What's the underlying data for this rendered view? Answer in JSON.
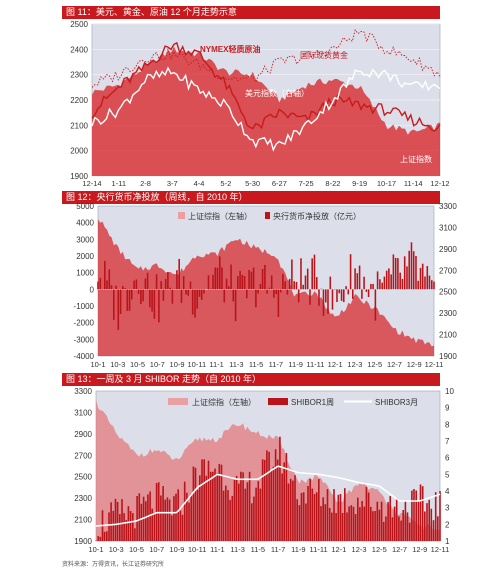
{
  "chart_data": [
    {
      "type": "line",
      "title": "图 11：美元、黄金、原油 12 个月走势示意",
      "categories": [
        "12-14",
        "1-11",
        "2-8",
        "3-7",
        "4-4",
        "5-2",
        "5-30",
        "6-27",
        "7-25",
        "8-22",
        "9-19",
        "10-17",
        "11-14",
        "12-12"
      ],
      "ylim": [
        1900,
        2500
      ],
      "yticks": [
        1900,
        2000,
        2100,
        2200,
        2300,
        2400,
        2500
      ],
      "grid": true,
      "series": [
        {
          "name": "上证指数",
          "kind": "area",
          "color": "#c81a1e",
          "values": [
            2230,
            2260,
            2330,
            2400,
            2380,
            2310,
            2300,
            2200,
            2260,
            2280,
            2250,
            2100,
            2070,
            2100
          ]
        },
        {
          "name": "NYMEX轻质原油",
          "kind": "line",
          "color": "#c81a1e",
          "values": [
            2150,
            2250,
            2330,
            2420,
            2380,
            2260,
            2080,
            2150,
            2120,
            2200,
            2180,
            2160,
            2120,
            2090
          ]
        },
        {
          "name": "国际现货黄金",
          "kind": "dotted",
          "color": "#c81a1e",
          "values": [
            2260,
            2300,
            2370,
            2380,
            2340,
            2290,
            2280,
            2350,
            2370,
            2400,
            2470,
            2400,
            2360,
            2300
          ]
        },
        {
          "name": "美元指数（右轴）",
          "kind": "line",
          "color": "#ffffff",
          "values": [
            2110,
            2160,
            2280,
            2310,
            2240,
            2180,
            2040,
            2020,
            2100,
            2200,
            2320,
            2300,
            2250,
            2260
          ]
        }
      ]
    },
    {
      "type": "bar",
      "title": "图 12：央行货币净投放（周线，自 2010 年）",
      "categories": [
        "10-1",
        "10-3",
        "10-5",
        "10-7",
        "10-9",
        "10-11",
        "11-1",
        "11-3",
        "11-5",
        "11-7",
        "11-9",
        "11-11",
        "12-1",
        "12-3",
        "12-5",
        "12-7",
        "12-9",
        "12-11"
      ],
      "ylim": [
        -4000,
        5000
      ],
      "yticks": [
        -4000,
        -3000,
        -2000,
        -1000,
        0,
        1000,
        2000,
        3000,
        4000,
        5000
      ],
      "y2lim": [
        1900,
        3300
      ],
      "y2ticks": [
        1900,
        2100,
        2300,
        2500,
        2700,
        2900,
        3100,
        3300
      ],
      "grid": false,
      "series": [
        {
          "name": "上证综指（左轴）",
          "kind": "area",
          "color": "#c81a1e",
          "values": [
            3200,
            2900,
            2700,
            2750,
            2650,
            2850,
            2850,
            3000,
            2900,
            2850,
            2450,
            2500,
            2250,
            2450,
            2350,
            2150,
            2050,
            2000
          ]
        },
        {
          "name": "央行货币净投放（亿元）",
          "kind": "bar",
          "color": "#c81a1e",
          "values": [
            2000,
            -1800,
            1500,
            -1200,
            900,
            -600,
            1800,
            -900,
            700,
            -400,
            1000,
            800,
            -1500,
            2000,
            -700,
            1200,
            2500,
            -1000
          ]
        }
      ]
    },
    {
      "type": "line",
      "title": "图 13：一周及 3 月 SHIBOR 走势（自 2010 年）",
      "categories": [
        "10-1",
        "10-3",
        "10-5",
        "10-7",
        "10-9",
        "10-11",
        "11-1",
        "11-3",
        "11-5",
        "11-7",
        "11-9",
        "11-11",
        "12-1",
        "12-3",
        "12-5",
        "12-7",
        "12-9",
        "12-11"
      ],
      "ylim": [
        1900,
        3300
      ],
      "yticks": [
        1900,
        2100,
        2300,
        2500,
        2700,
        2900,
        3100,
        3300
      ],
      "y2lim": [
        1,
        10
      ],
      "y2ticks": [
        1,
        2,
        3,
        4,
        5,
        6,
        7,
        8,
        9,
        10
      ],
      "grid": false,
      "series": [
        {
          "name": "上证综指（左轴）",
          "kind": "area",
          "color": "#c81a1e",
          "values": [
            3200,
            2900,
            2700,
            2750,
            2650,
            2850,
            2850,
            3000,
            2900,
            2850,
            2450,
            2500,
            2250,
            2450,
            2350,
            2150,
            2050,
            2000
          ]
        },
        {
          "name": "SHIBOR1周",
          "kind": "bar",
          "color": "#c81a1e",
          "values": [
            2.0,
            2.5,
            2.8,
            3.5,
            3.0,
            5.0,
            5.5,
            4.0,
            4.5,
            6.5,
            4.0,
            3.8,
            3.5,
            3.5,
            3.2,
            3.0,
            3.3,
            3.2
          ]
        },
        {
          "name": "SHIBOR3月",
          "kind": "line",
          "color": "#ffffff",
          "values": [
            1.9,
            2.0,
            2.2,
            2.7,
            2.7,
            4.2,
            5.0,
            4.7,
            4.7,
            5.5,
            5.1,
            5.0,
            4.8,
            4.5,
            4.3,
            3.4,
            3.4,
            3.8
          ]
        }
      ]
    }
  ],
  "labels": {
    "p1_oil": "NYMEX轻质原油",
    "p1_gold": "国际现货黄金",
    "p1_usd": "美元指数（右轴）",
    "p1_sh": "上证指数",
    "p2_legend_sh": "上证综指（左轴）",
    "p2_legend_bar": "央行货币净投放（亿元）",
    "p3_legend_sh": "上证综指（左轴）",
    "p3_legend_w": "SHIBOR1周",
    "p3_legend_m": "SHIBOR3月"
  },
  "footer": "资料来源：万得资讯，长江证券研究所"
}
